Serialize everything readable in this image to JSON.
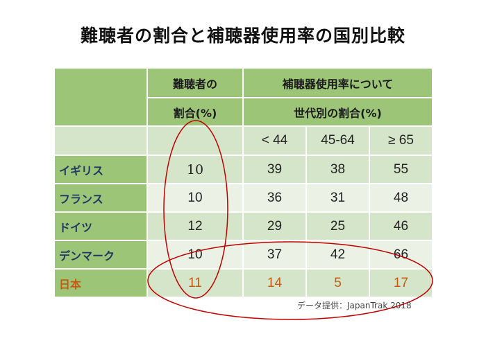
{
  "title": "難聴者の割合と補聴器使用率の国別比較",
  "table": {
    "header_prevalence_line1": "難聴者の",
    "header_prevalence_line2": "割合(%)",
    "header_usage_line1": "補聴器使用率について",
    "header_usage_line2": "世代別の割合(%)",
    "age_groups": [
      "< 44",
      "45-64",
      "≥ 65"
    ],
    "rows": [
      {
        "country": "イギリス",
        "prevalence": "10",
        "under44": "39",
        "age45_64": "38",
        "over65": "55"
      },
      {
        "country": "フランス",
        "prevalence": "10",
        "under44": "36",
        "age45_64": "31",
        "over65": "48"
      },
      {
        "country": "ドイツ",
        "prevalence": "12",
        "under44": "29",
        "age45_64": "25",
        "over65": "46"
      },
      {
        "country": "デンマーク",
        "prevalence": "10",
        "under44": "37",
        "age45_64": "42",
        "over65": "66"
      },
      {
        "country": "日本",
        "prevalence": "11",
        "under44": "14",
        "age45_64": "5",
        "over65": "17"
      }
    ]
  },
  "source": "データ提供：JapanTrak 2018",
  "colors": {
    "header_green": "#9dc578",
    "light_green": "#d5e5c9",
    "pale_green": "#ebf2e5",
    "country_text": "#1f3864",
    "japan_text": "#c55a11",
    "annotation_red": "#c00000"
  }
}
